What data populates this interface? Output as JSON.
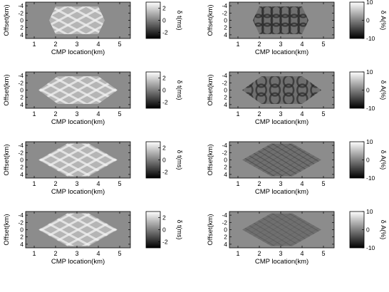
{
  "figure": {
    "background_color": "#ffffff",
    "field_gray": "#8c8c8c"
  },
  "chart_data": [
    {
      "type": "heatmap",
      "row": 1,
      "column": "left",
      "xlabel": "CMP location(km)",
      "ylabel": "Offset(km)",
      "xticks": [
        1,
        2,
        3,
        4,
        5
      ],
      "yticks": [
        -4,
        -2,
        0,
        2,
        4
      ],
      "xlim": [
        0.6,
        5.5
      ],
      "ylim": [
        -5,
        5
      ],
      "y_reversed": true,
      "colorbar": {
        "label": "δ t(ms)",
        "ticks": [
          2,
          0,
          -2
        ],
        "range": [
          -3,
          3
        ],
        "colormap": "gray"
      },
      "footprint": {
        "shape": "rectangle",
        "x_range": [
          1.7,
          4.3
        ],
        "y_range": [
          -3.8,
          3.8
        ]
      },
      "pattern": "crossing diagonal bright bands"
    },
    {
      "type": "heatmap",
      "row": 1,
      "column": "right",
      "xlabel": "CMP location(km)",
      "ylabel": "Offset(km)",
      "xticks": [
        1,
        2,
        3,
        4,
        5
      ],
      "yticks": [
        -4,
        -2,
        0,
        2,
        4
      ],
      "xlim": [
        0.6,
        5.5
      ],
      "ylim": [
        -5,
        5
      ],
      "y_reversed": true,
      "colorbar": {
        "label": "δ A(%)",
        "ticks": [
          10,
          0,
          -10
        ],
        "range": [
          -10,
          10
        ],
        "colormap": "gray"
      },
      "footprint": {
        "shape": "rectangle",
        "x_range": [
          1.7,
          4.3
        ],
        "y_range": [
          -3.8,
          3.8
        ]
      },
      "pattern": "dark ring blobs"
    },
    {
      "type": "heatmap",
      "row": 2,
      "column": "left",
      "xlabel": "CMP location(km)",
      "ylabel": "Offset(km)",
      "xticks": [
        1,
        2,
        3,
        4,
        5
      ],
      "yticks": [
        -4,
        -2,
        0,
        2,
        4
      ],
      "xlim": [
        0.6,
        5.5
      ],
      "ylim": [
        -5,
        5
      ],
      "y_reversed": true,
      "colorbar": {
        "label": "δ t(ms)",
        "ticks": [
          2,
          0,
          -2
        ],
        "range": [
          -3,
          3
        ],
        "colormap": "gray"
      },
      "footprint": {
        "shape": "hexagon",
        "x_range": [
          1.2,
          4.9
        ],
        "y_range": [
          -3.8,
          3.8
        ]
      },
      "pattern": "crossing diagonal bright bands"
    },
    {
      "type": "heatmap",
      "row": 2,
      "column": "right",
      "xlabel": "CMP location(km)",
      "ylabel": "Offset(km)",
      "xticks": [
        1,
        2,
        3,
        4,
        5
      ],
      "yticks": [
        -4,
        -2,
        0,
        2,
        4
      ],
      "xlim": [
        0.6,
        5.5
      ],
      "ylim": [
        -5,
        5
      ],
      "y_reversed": true,
      "colorbar": {
        "label": "δ A(%)",
        "ticks": [
          10,
          0,
          -10
        ],
        "range": [
          -10,
          10
        ],
        "colormap": "gray"
      },
      "footprint": {
        "shape": "hexagon",
        "x_range": [
          1.2,
          4.9
        ],
        "y_range": [
          -3.8,
          3.8
        ]
      },
      "pattern": "dark ring blobs"
    },
    {
      "type": "heatmap",
      "row": 3,
      "column": "left",
      "xlabel": "CMP location(km)",
      "ylabel": "Offset(km)",
      "xticks": [
        1,
        2,
        3,
        4,
        5
      ],
      "yticks": [
        -4,
        -2,
        0,
        2,
        4
      ],
      "xlim": [
        0.6,
        5.5
      ],
      "ylim": [
        -5,
        5
      ],
      "y_reversed": true,
      "colorbar": {
        "label": "δ t(ms)",
        "ticks": [
          2,
          0,
          -2
        ],
        "range": [
          -3,
          3
        ],
        "colormap": "gray"
      },
      "footprint": {
        "shape": "diamond",
        "x_range": [
          1.2,
          4.9
        ],
        "y_range": [
          -4.5,
          4.5
        ]
      },
      "pattern": "crossing diagonal bright bands"
    },
    {
      "type": "heatmap",
      "row": 3,
      "column": "right",
      "xlabel": "CMP location(km)",
      "ylabel": "Offset(km)",
      "xticks": [
        1,
        2,
        3,
        4,
        5
      ],
      "yticks": [
        -4,
        -2,
        0,
        2,
        4
      ],
      "xlim": [
        0.6,
        5.5
      ],
      "ylim": [
        -5,
        5
      ],
      "y_reversed": true,
      "colorbar": {
        "label": "δ A(%)",
        "ticks": [
          10,
          0,
          -10
        ],
        "range": [
          -10,
          10
        ],
        "colormap": "gray"
      },
      "footprint": {
        "shape": "diamond",
        "x_range": [
          1.2,
          4.9
        ],
        "y_range": [
          -4.5,
          4.5
        ]
      },
      "pattern": "dark diagonal streaks"
    },
    {
      "type": "heatmap",
      "row": 4,
      "column": "left",
      "xlabel": "CMP location(km)",
      "ylabel": "Offset(km)",
      "xticks": [
        1,
        2,
        3,
        4,
        5
      ],
      "yticks": [
        -4,
        -2,
        0,
        2,
        4
      ],
      "xlim": [
        0.6,
        5.5
      ],
      "ylim": [
        -5,
        5
      ],
      "y_reversed": true,
      "colorbar": {
        "label": "δ t(ms)",
        "ticks": [
          2,
          0,
          -2
        ],
        "range": [
          -3,
          3
        ],
        "colormap": "gray"
      },
      "footprint": {
        "shape": "diamond",
        "x_range": [
          1.2,
          4.9
        ],
        "y_range": [
          -4.5,
          4.5
        ]
      },
      "pattern": "crossing diagonal bright bands"
    },
    {
      "type": "heatmap",
      "row": 4,
      "column": "right",
      "xlabel": "CMP location(km)",
      "ylabel": "Offset(km)",
      "xticks": [
        1,
        2,
        3,
        4,
        5
      ],
      "yticks": [
        -4,
        -2,
        0,
        2,
        4
      ],
      "xlim": [
        0.6,
        5.5
      ],
      "ylim": [
        -5,
        5
      ],
      "y_reversed": true,
      "colorbar": {
        "label": "δ A(%)",
        "ticks": [
          10,
          0,
          -10
        ],
        "range": [
          -10,
          10
        ],
        "colormap": "gray"
      },
      "footprint": {
        "shape": "diamond",
        "x_range": [
          1.2,
          4.9
        ],
        "y_range": [
          -4.5,
          4.5
        ]
      },
      "pattern": "faint diagonal streaks"
    }
  ]
}
